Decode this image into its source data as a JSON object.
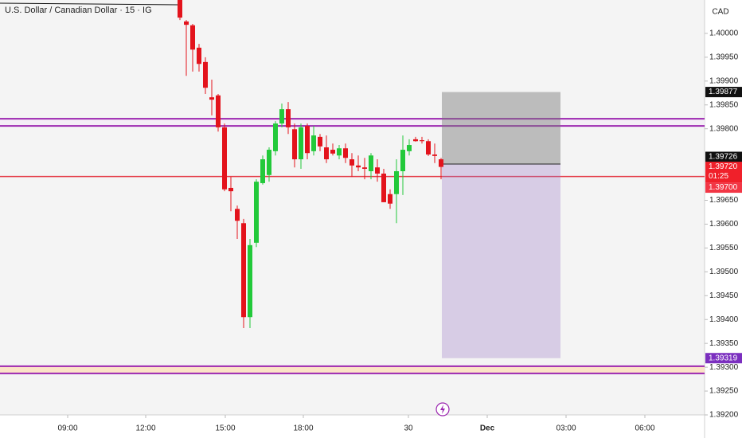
{
  "chart_data": {
    "type": "candlestick",
    "title": "U.S. Dollar / Canadian Dollar · 15 · IG",
    "currency": "CAD",
    "x": [
      0,
      1,
      2,
      3,
      4,
      5,
      6,
      7,
      8,
      9,
      10,
      11,
      12,
      13,
      14,
      15,
      16,
      17,
      18,
      19,
      20,
      21,
      22,
      23,
      24,
      25,
      26,
      27,
      28,
      29,
      30,
      31,
      32,
      33,
      34,
      35,
      36,
      37,
      38,
      39,
      40,
      41
    ],
    "open": [
      1.4007,
      1.40025,
      1.40017,
      1.3997,
      1.3994,
      1.39866,
      1.3987,
      1.39803,
      1.39676,
      1.39632,
      1.39602,
      1.39405,
      1.39561,
      1.39686,
      1.39703,
      1.39753,
      1.39811,
      1.39841,
      1.39799,
      1.39736,
      1.39806,
      1.39753,
      1.39783,
      1.39761,
      1.39756,
      1.39744,
      1.39759,
      1.39736,
      1.39723,
      1.39719,
      1.39711,
      1.39719,
      1.39706,
      1.39663,
      1.39663,
      1.39711,
      1.39753,
      1.39778,
      1.39776,
      1.39774,
      1.39746,
      1.39736
    ],
    "high": [
      1.4007,
      1.40028,
      1.4002,
      1.39978,
      1.3995,
      1.39903,
      1.39873,
      1.39811,
      1.39699,
      1.39639,
      1.39611,
      1.39569,
      1.39694,
      1.39744,
      1.39761,
      1.39816,
      1.39853,
      1.39856,
      1.39811,
      1.39811,
      1.39811,
      1.39806,
      1.39789,
      1.39786,
      1.39769,
      1.39766,
      1.39769,
      1.39749,
      1.39744,
      1.39739,
      1.39749,
      1.39736,
      1.39716,
      1.39673,
      1.39736,
      1.39786,
      1.39778,
      1.39783,
      1.39783,
      1.39778,
      1.39769,
      1.39739
    ],
    "low": [
      1.40028,
      1.39911,
      1.3992,
      1.3992,
      1.39873,
      1.39828,
      1.39794,
      1.39669,
      1.39627,
      1.39569,
      1.39382,
      1.39382,
      1.39552,
      1.39683,
      1.39689,
      1.39744,
      1.39803,
      1.39789,
      1.39719,
      1.39716,
      1.39736,
      1.39744,
      1.39753,
      1.39728,
      1.39744,
      1.39736,
      1.39728,
      1.39699,
      1.39711,
      1.39694,
      1.39694,
      1.39689,
      1.39646,
      1.39632,
      1.39602,
      1.39661,
      1.39744,
      1.39773,
      1.39769,
      1.39743,
      1.39728,
      1.39694
    ],
    "close": [
      1.40033,
      1.40018,
      1.39966,
      1.39936,
      1.39886,
      1.39861,
      1.39803,
      1.39673,
      1.39669,
      1.39607,
      1.39405,
      1.39556,
      1.39689,
      1.39736,
      1.39756,
      1.39811,
      1.39841,
      1.39803,
      1.39736,
      1.39803,
      1.39749,
      1.39786,
      1.39763,
      1.39736,
      1.39748,
      1.39759,
      1.39739,
      1.39723,
      1.39719,
      1.39716,
      1.39744,
      1.39706,
      1.39646,
      1.39643,
      1.39711,
      1.39756,
      1.39766,
      1.39774,
      1.39774,
      1.39746,
      1.39743,
      1.3972
    ],
    "up_color": "#22c93a",
    "down_color": "#e3131c",
    "xlim": [
      -28.25,
      82.375
    ],
    "xticks": [
      {
        "value": -17.625,
        "label": "09:00"
      },
      {
        "value": -5.375,
        "label": "12:00"
      },
      {
        "value": 7.125,
        "label": "15:00"
      },
      {
        "value": 19.375,
        "label": "18:00"
      },
      {
        "value": 35.875,
        "label": "30"
      },
      {
        "value": 48.25,
        "label": "Dec"
      },
      {
        "value": 60.625,
        "label": "03:00"
      },
      {
        "value": 73,
        "label": "06:00"
      }
    ],
    "ylim": [
      1.392,
      1.4007
    ],
    "yticks": [
      {
        "value": 1.4,
        "label": "1.40000"
      },
      {
        "value": 1.3995,
        "label": "1.39950"
      },
      {
        "value": 1.399,
        "label": "1.39900"
      },
      {
        "value": 1.3985,
        "label": "1.39850"
      },
      {
        "value": 1.398,
        "label": "1.39800"
      },
      {
        "value": 1.3965,
        "label": "1.39650"
      },
      {
        "value": 1.396,
        "label": "1.39600"
      },
      {
        "value": 1.3955,
        "label": "1.39550"
      },
      {
        "value": 1.395,
        "label": "1.39500"
      },
      {
        "value": 1.3945,
        "label": "1.39450"
      },
      {
        "value": 1.394,
        "label": "1.39400"
      },
      {
        "value": 1.3935,
        "label": "1.39350"
      },
      {
        "value": 1.393,
        "label": "1.39300"
      },
      {
        "value": 1.3925,
        "label": "1.39250"
      },
      {
        "value": 1.392,
        "label": "1.39200"
      }
    ],
    "zones": [
      {
        "from": 1.39821,
        "to": 1.39806,
        "fill": "#f4eef6",
        "border": "#9c27b0"
      },
      {
        "from": 1.39302,
        "to": 1.39287,
        "fill": "#fbe3c7",
        "border": "#9c27b0"
      }
    ],
    "levels": [
      {
        "value": 1.397,
        "color": "#e53945"
      }
    ],
    "position": {
      "x_start": 41.125,
      "x_end": 59.75,
      "top": 1.39877,
      "entry": 1.39726,
      "bottom": 1.39319
    },
    "badges": [
      {
        "value": 1.39877,
        "label": "1.39877",
        "color": "#111111"
      },
      {
        "value": 1.39726,
        "label": "1.39726",
        "color": "#111111"
      },
      {
        "value": 1.3972,
        "label": "1.39720",
        "color": "#f0202a",
        "countdown": "01:25"
      },
      {
        "value": 1.397,
        "label": "1.39700",
        "color": "#f23645"
      },
      {
        "value": 1.39319,
        "label": "1.39319",
        "color": "#7b2fbf"
      }
    ]
  }
}
